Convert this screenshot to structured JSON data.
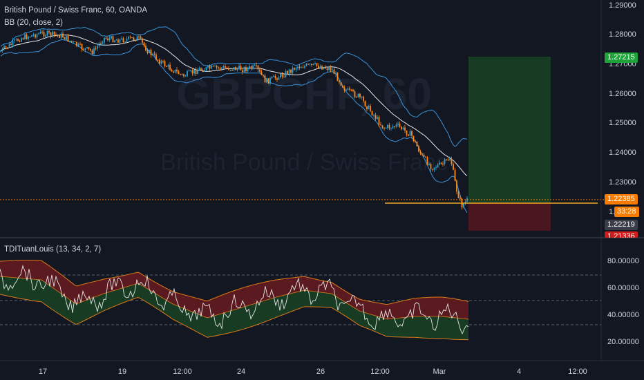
{
  "header": {
    "symbol_title": "British Pound / Swiss Franc, 60, OANDA",
    "indicator_label": "BB (20, close, 2)",
    "watermark_symbol": "GBPCHF, 60",
    "watermark_name": "British Pound / Swiss Franc"
  },
  "price_axis": {
    "ticks": [
      "1.29000",
      "1.28000",
      "1.27000",
      "1.26000",
      "1.25000",
      "1.24000",
      "1.23000",
      "1.22000"
    ]
  },
  "price_tags": {
    "target": "1.27215",
    "current": "1.22385",
    "countdown": "33:28",
    "bid": "1.22219",
    "stop": "1.21336"
  },
  "oscillator": {
    "label": "TDITuanLouis (13, 34, 2, 7)",
    "ticks": [
      "80.00000",
      "60.00000",
      "40.00000",
      "20.00000"
    ]
  },
  "time_axis": {
    "ticks": [
      "17",
      "19",
      "12:00",
      "24",
      "26",
      "12:00",
      "Mar",
      "4",
      "12:00"
    ]
  },
  "colors": {
    "background": "#131722",
    "bull": "#26a3da",
    "bear": "#ff8c1a",
    "target_zone": "#173c23",
    "stop_zone": "#4a1620",
    "target_tag": "#1ea33a",
    "current_tag": "#f57c00",
    "stop_tag": "#d01c1c",
    "bb_band": "#3a92d9",
    "bb_basis": "#e8e8e8",
    "tdi_upper_fill": "#5a1a1f",
    "tdi_lower_fill": "#173c23"
  }
}
